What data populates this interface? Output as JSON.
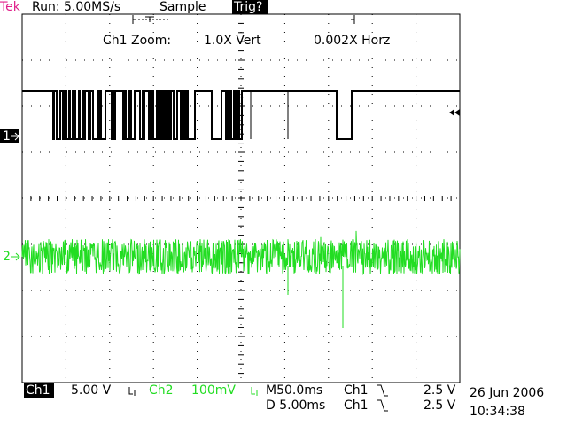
{
  "header": {
    "brand": "Tek",
    "run": "Run: 5.00MS/s",
    "mode": "Sample",
    "trigger_status": "Trig?"
  },
  "zoom": {
    "label": "Ch1 Zoom:",
    "vertical": "1.0X Vert",
    "horizontal": "0.002X Horz"
  },
  "markers": {
    "ch1": "1",
    "ch2": "2"
  },
  "status": {
    "ch1_label": "Ch1",
    "ch1_scale": "5.00 V",
    "ch2_label": "Ch2",
    "ch2_scale": "100mV",
    "timebase": "M50.0ms",
    "trig_source": "Ch1",
    "trig_level": "2.5 V",
    "delay": "D 5.00ms",
    "delay_source": "Ch1",
    "delay_level": "2.5 V",
    "date": "26 Jun 2006",
    "time": "10:34:38"
  }
}
